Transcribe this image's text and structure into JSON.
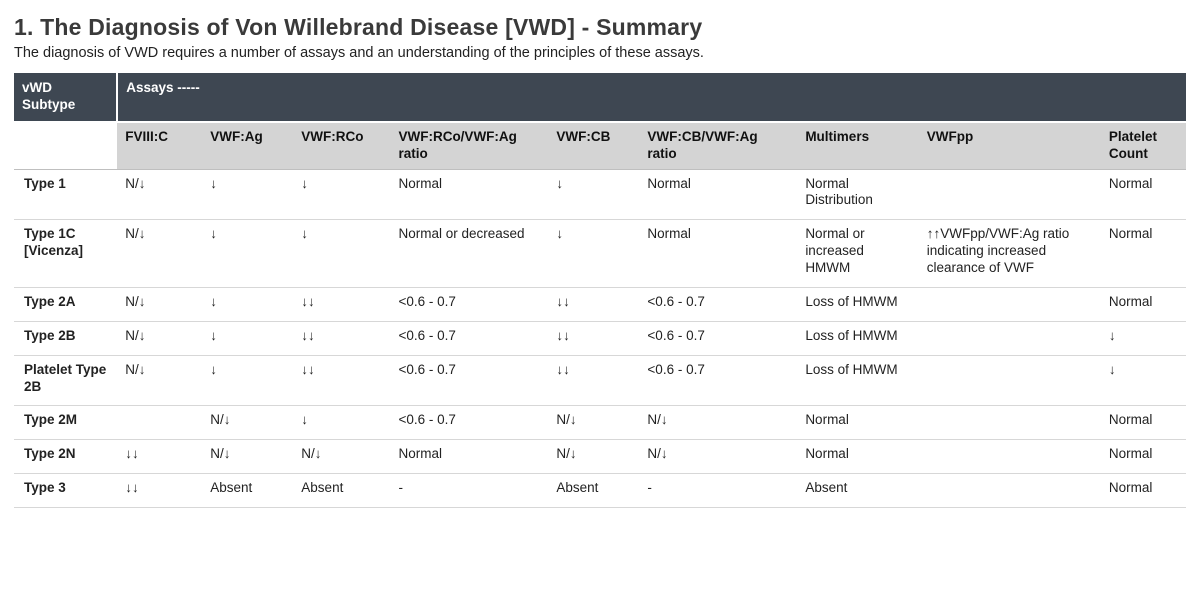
{
  "title": "1. The Diagnosis of Von Willebrand Disease [VWD] - Summary",
  "subtitle": "The diagnosis of VWD requires a number of assays and an understanding of the principles of these assays.",
  "header": {
    "corner": "vWD Subtype",
    "assays_label": "Assays -----",
    "columns": [
      "FVIII:C",
      "VWF:Ag",
      "VWF:RCo",
      "VWF:RCo/VWF:Ag ratio",
      "VWF:CB",
      "VWF:CB/VWF:Ag ratio",
      "Multimers",
      "VWFpp",
      "Platelet Count"
    ]
  },
  "rows": [
    {
      "subtype": "Type 1",
      "cells": [
        "N/↓",
        "↓",
        "↓",
        "Normal",
        "↓",
        "Normal",
        "Normal Distribution",
        "",
        "Normal"
      ]
    },
    {
      "subtype": "Type 1C [Vicenza]",
      "cells": [
        "N/↓",
        "↓",
        "↓",
        "Normal or decreased",
        "↓",
        "Normal",
        "Normal or increased HMWM",
        "↑↑VWFpp/VWF:Ag ratio indicating increased clearance of VWF",
        "Normal"
      ]
    },
    {
      "subtype": "Type 2A",
      "cells": [
        "N/↓",
        "↓",
        "↓↓",
        "<0.6 - 0.7",
        "↓↓",
        "<0.6 - 0.7",
        "Loss of HMWM",
        "",
        "Normal"
      ]
    },
    {
      "subtype": "Type 2B",
      "cells": [
        "N/↓",
        "↓",
        "↓↓",
        "<0.6 - 0.7",
        "↓↓",
        "<0.6 - 0.7",
        "Loss of HMWM",
        "",
        "↓"
      ]
    },
    {
      "subtype": "Platelet Type 2B",
      "cells": [
        "N/↓",
        "↓",
        "↓↓",
        "<0.6 - 0.7",
        "↓↓",
        "<0.6 - 0.7",
        "Loss of HMWM",
        "",
        "↓"
      ]
    },
    {
      "subtype": "Type 2M",
      "cells": [
        "",
        "N/↓",
        "↓",
        "<0.6 - 0.7",
        "N/↓",
        "N/↓",
        "Normal",
        "",
        "Normal"
      ]
    },
    {
      "subtype": "Type 2N",
      "cells": [
        "↓↓",
        "N/↓",
        "N/↓",
        "Normal",
        "N/↓",
        "N/↓",
        "Normal",
        "",
        "Normal"
      ]
    },
    {
      "subtype": "Type 3",
      "cells": [
        "↓↓",
        "Absent",
        "Absent",
        "-",
        "Absent",
        "-",
        "Absent",
        "",
        "Normal"
      ]
    }
  ]
}
